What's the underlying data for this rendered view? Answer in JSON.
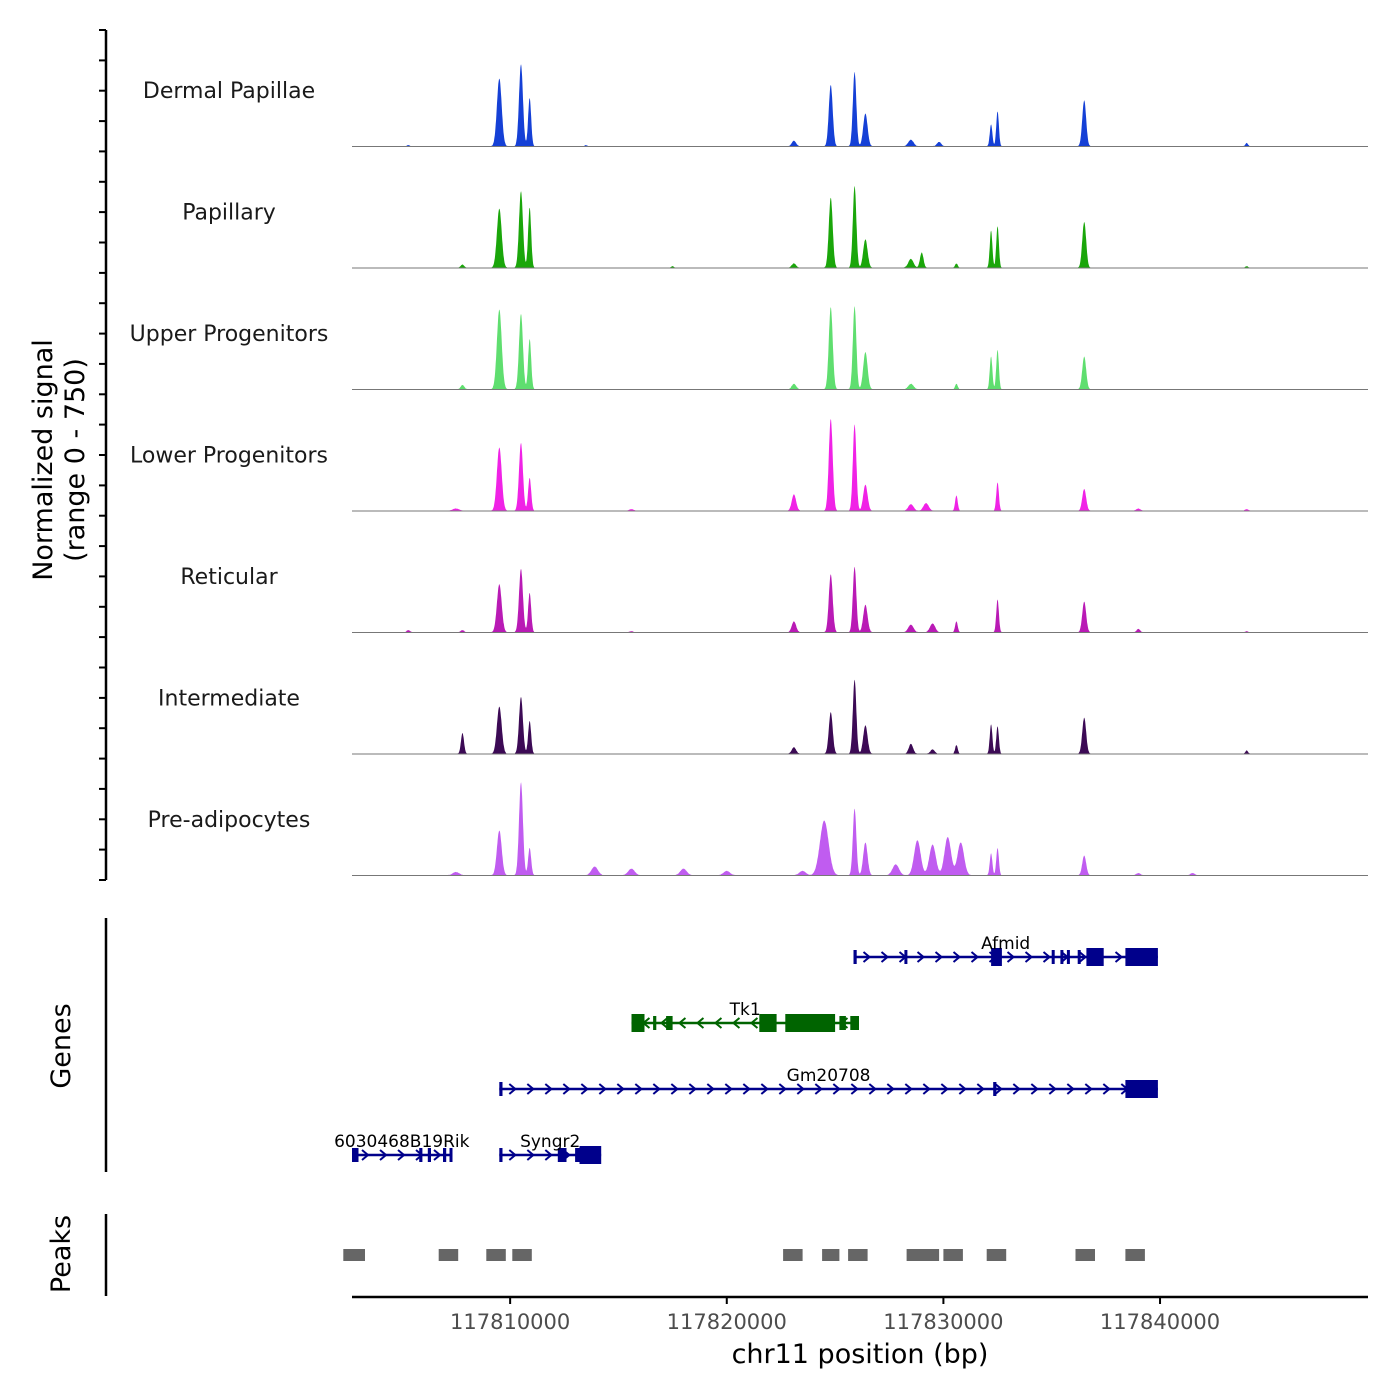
{
  "chart_data": {
    "type": "area",
    "title": "",
    "ylabel": "Normalized signal\n(range 0 - 750)",
    "ylabel_lines": [
      "Normalized signal",
      "(range 0 - 750)"
    ],
    "xlabel": "chr11 position (bp)",
    "xlim": [
      117802700,
      117849600
    ],
    "ylim": [
      0,
      750
    ],
    "x_ticks": [
      117810000,
      117820000,
      117830000,
      117840000
    ],
    "x_tick_labels": [
      "117810000",
      "117820000",
      "117830000",
      "117840000"
    ],
    "series": [
      {
        "name": "Dermal Papillae",
        "color": "#1540D6",
        "peaks": [
          [
            117805300,
            10,
            60
          ],
          [
            117809500,
            620,
            110
          ],
          [
            117810500,
            750,
            90
          ],
          [
            117810900,
            440,
            70
          ],
          [
            117813500,
            10,
            60
          ],
          [
            117823100,
            50,
            100
          ],
          [
            117824800,
            560,
            90
          ],
          [
            117825900,
            680,
            80
          ],
          [
            117826400,
            300,
            100
          ],
          [
            117828500,
            60,
            120
          ],
          [
            117829800,
            40,
            100
          ],
          [
            117832200,
            200,
            60
          ],
          [
            117832500,
            320,
            60
          ],
          [
            117836500,
            420,
            90
          ],
          [
            117844000,
            30,
            60
          ]
        ]
      },
      {
        "name": "Papillary",
        "color": "#1AA60A",
        "peaks": [
          [
            117807800,
            30,
            80
          ],
          [
            117809500,
            540,
            110
          ],
          [
            117810500,
            700,
            90
          ],
          [
            117810900,
            550,
            70
          ],
          [
            117817500,
            15,
            60
          ],
          [
            117823100,
            40,
            100
          ],
          [
            117824800,
            640,
            90
          ],
          [
            117825900,
            750,
            80
          ],
          [
            117826400,
            260,
            100
          ],
          [
            117828500,
            80,
            120
          ],
          [
            117829000,
            140,
            80
          ],
          [
            117830600,
            40,
            60
          ],
          [
            117832200,
            340,
            60
          ],
          [
            117832500,
            380,
            60
          ],
          [
            117836500,
            420,
            90
          ],
          [
            117844000,
            15,
            60
          ]
        ]
      },
      {
        "name": "Upper Progenitors",
        "color": "#5FDE6F",
        "peaks": [
          [
            117807800,
            40,
            80
          ],
          [
            117809500,
            730,
            110
          ],
          [
            117810500,
            690,
            90
          ],
          [
            117810900,
            460,
            70
          ],
          [
            117823100,
            50,
            100
          ],
          [
            117824800,
            750,
            90
          ],
          [
            117825900,
            760,
            80
          ],
          [
            117826400,
            340,
            100
          ],
          [
            117828500,
            50,
            120
          ],
          [
            117830600,
            50,
            60
          ],
          [
            117832200,
            300,
            60
          ],
          [
            117832500,
            360,
            60
          ],
          [
            117836500,
            300,
            90
          ]
        ]
      },
      {
        "name": "Lower Progenitors",
        "color": "#F022E6",
        "peaks": [
          [
            117804000,
            10,
            150
          ],
          [
            117807500,
            20,
            150
          ],
          [
            117809500,
            580,
            110
          ],
          [
            117810500,
            620,
            90
          ],
          [
            117810900,
            300,
            70
          ],
          [
            117815600,
            15,
            100
          ],
          [
            117823100,
            150,
            100
          ],
          [
            117824800,
            840,
            90
          ],
          [
            117825900,
            790,
            80
          ],
          [
            117826400,
            240,
            100
          ],
          [
            117828500,
            60,
            120
          ],
          [
            117829200,
            70,
            120
          ],
          [
            117830600,
            140,
            60
          ],
          [
            117832500,
            260,
            60
          ],
          [
            117836500,
            200,
            90
          ],
          [
            117839000,
            20,
            100
          ],
          [
            117844000,
            15,
            80
          ]
        ]
      },
      {
        "name": "Reticular",
        "color": "#B91AB5",
        "peaks": [
          [
            117805300,
            20,
            80
          ],
          [
            117807800,
            20,
            80
          ],
          [
            117809500,
            440,
            110
          ],
          [
            117810500,
            580,
            90
          ],
          [
            117810900,
            360,
            70
          ],
          [
            117815600,
            10,
            80
          ],
          [
            117823100,
            100,
            100
          ],
          [
            117824800,
            530,
            90
          ],
          [
            117825900,
            600,
            80
          ],
          [
            117826400,
            250,
            100
          ],
          [
            117828500,
            70,
            120
          ],
          [
            117829500,
            80,
            120
          ],
          [
            117830600,
            100,
            60
          ],
          [
            117832500,
            300,
            60
          ],
          [
            117836500,
            280,
            90
          ],
          [
            117839000,
            30,
            80
          ],
          [
            117844000,
            10,
            60
          ]
        ]
      },
      {
        "name": "Intermediate",
        "color": "#3C0A55",
        "peaks": [
          [
            117807800,
            190,
            70
          ],
          [
            117809500,
            430,
            110
          ],
          [
            117810500,
            520,
            90
          ],
          [
            117810900,
            300,
            70
          ],
          [
            117823100,
            60,
            100
          ],
          [
            117824800,
            380,
            90
          ],
          [
            117825900,
            680,
            80
          ],
          [
            117826400,
            260,
            100
          ],
          [
            117828500,
            90,
            100
          ],
          [
            117829500,
            40,
            100
          ],
          [
            117830600,
            80,
            60
          ],
          [
            117832200,
            270,
            60
          ],
          [
            117832500,
            250,
            60
          ],
          [
            117836500,
            330,
            90
          ],
          [
            117844000,
            30,
            60
          ]
        ]
      },
      {
        "name": "Pre-adipocytes",
        "color": "#C05CF0",
        "peaks": [
          [
            117804500,
            15,
            200
          ],
          [
            117807500,
            30,
            150
          ],
          [
            117809500,
            410,
            110
          ],
          [
            117810500,
            850,
            90
          ],
          [
            117810900,
            250,
            70
          ],
          [
            117813900,
            80,
            150
          ],
          [
            117815600,
            60,
            150
          ],
          [
            117818000,
            60,
            150
          ],
          [
            117820000,
            40,
            150
          ],
          [
            117823500,
            40,
            150
          ],
          [
            117824500,
            500,
            200
          ],
          [
            117825900,
            610,
            80
          ],
          [
            117826400,
            300,
            100
          ],
          [
            117827800,
            100,
            150
          ],
          [
            117828800,
            320,
            150
          ],
          [
            117829500,
            280,
            150
          ],
          [
            117830200,
            350,
            150
          ],
          [
            117830800,
            300,
            150
          ],
          [
            117832200,
            200,
            60
          ],
          [
            117832500,
            250,
            60
          ],
          [
            117836500,
            180,
            90
          ],
          [
            117839000,
            20,
            100
          ],
          [
            117841500,
            20,
            100
          ]
        ]
      }
    ],
    "genes": [
      {
        "name": "Afmid",
        "strand": "+",
        "color": "#00008B",
        "start": 117825850,
        "end": 117839900,
        "exons": [
          [
            117825850,
            117826000
          ],
          [
            117828200,
            117828300
          ],
          [
            117832200,
            117832700
          ],
          [
            117835000,
            117835100
          ],
          [
            117835400,
            117835500
          ],
          [
            117835700,
            117835800
          ],
          [
            117836200,
            117836300
          ],
          [
            117836600,
            117837400
          ],
          [
            117838400,
            117839900
          ]
        ]
      },
      {
        "name": "Tk1",
        "strand": "-",
        "color": "#006400",
        "start": 117815600,
        "end": 117826100,
        "exons": [
          [
            117815600,
            117816200
          ],
          [
            117816600,
            117816750
          ],
          [
            117817200,
            117817500
          ],
          [
            117821500,
            117822300
          ],
          [
            117822700,
            117825000
          ],
          [
            117825200,
            117825500
          ],
          [
            117825700,
            117826100
          ]
        ]
      },
      {
        "name": "Gm20708",
        "strand": "+",
        "color": "#00008B",
        "start": 117809500,
        "end": 117839900,
        "exons": [
          [
            117809500,
            117809650
          ],
          [
            117832300,
            117832450
          ],
          [
            117838400,
            117839900
          ]
        ]
      },
      {
        "name": "6030468B19Rik",
        "strand": "+",
        "color": "#00008B",
        "start": 117802700,
        "end": 117807300,
        "exons": [
          [
            117802700,
            117803000
          ],
          [
            117805800,
            117805950
          ],
          [
            117806200,
            117806350
          ],
          [
            117806900,
            117807050
          ],
          [
            117807200,
            117807300
          ]
        ]
      },
      {
        "name": "Syngr2",
        "strand": "+",
        "color": "#00008B",
        "start": 117809500,
        "end": 117814200,
        "exons": [
          [
            117809500,
            117809650
          ],
          [
            117812200,
            117812600
          ],
          [
            117813000,
            117813250
          ],
          [
            117813200,
            117814200
          ]
        ]
      }
    ],
    "peaks_track": {
      "name": "Peaks",
      "color": "#666666",
      "regions": [
        [
          117802300,
          117803300
        ],
        [
          117806700,
          117807600
        ],
        [
          117808900,
          117809800
        ],
        [
          117810100,
          117811000
        ],
        [
          117822600,
          117823500
        ],
        [
          117824400,
          117825200
        ],
        [
          117825600,
          117826500
        ],
        [
          117828300,
          117829800
        ],
        [
          117830000,
          117830900
        ],
        [
          117832000,
          117832900
        ],
        [
          117836100,
          117837000
        ],
        [
          117838400,
          117839300
        ]
      ]
    },
    "panel_labels": {
      "genes": "Genes",
      "peaks": "Peaks"
    }
  }
}
